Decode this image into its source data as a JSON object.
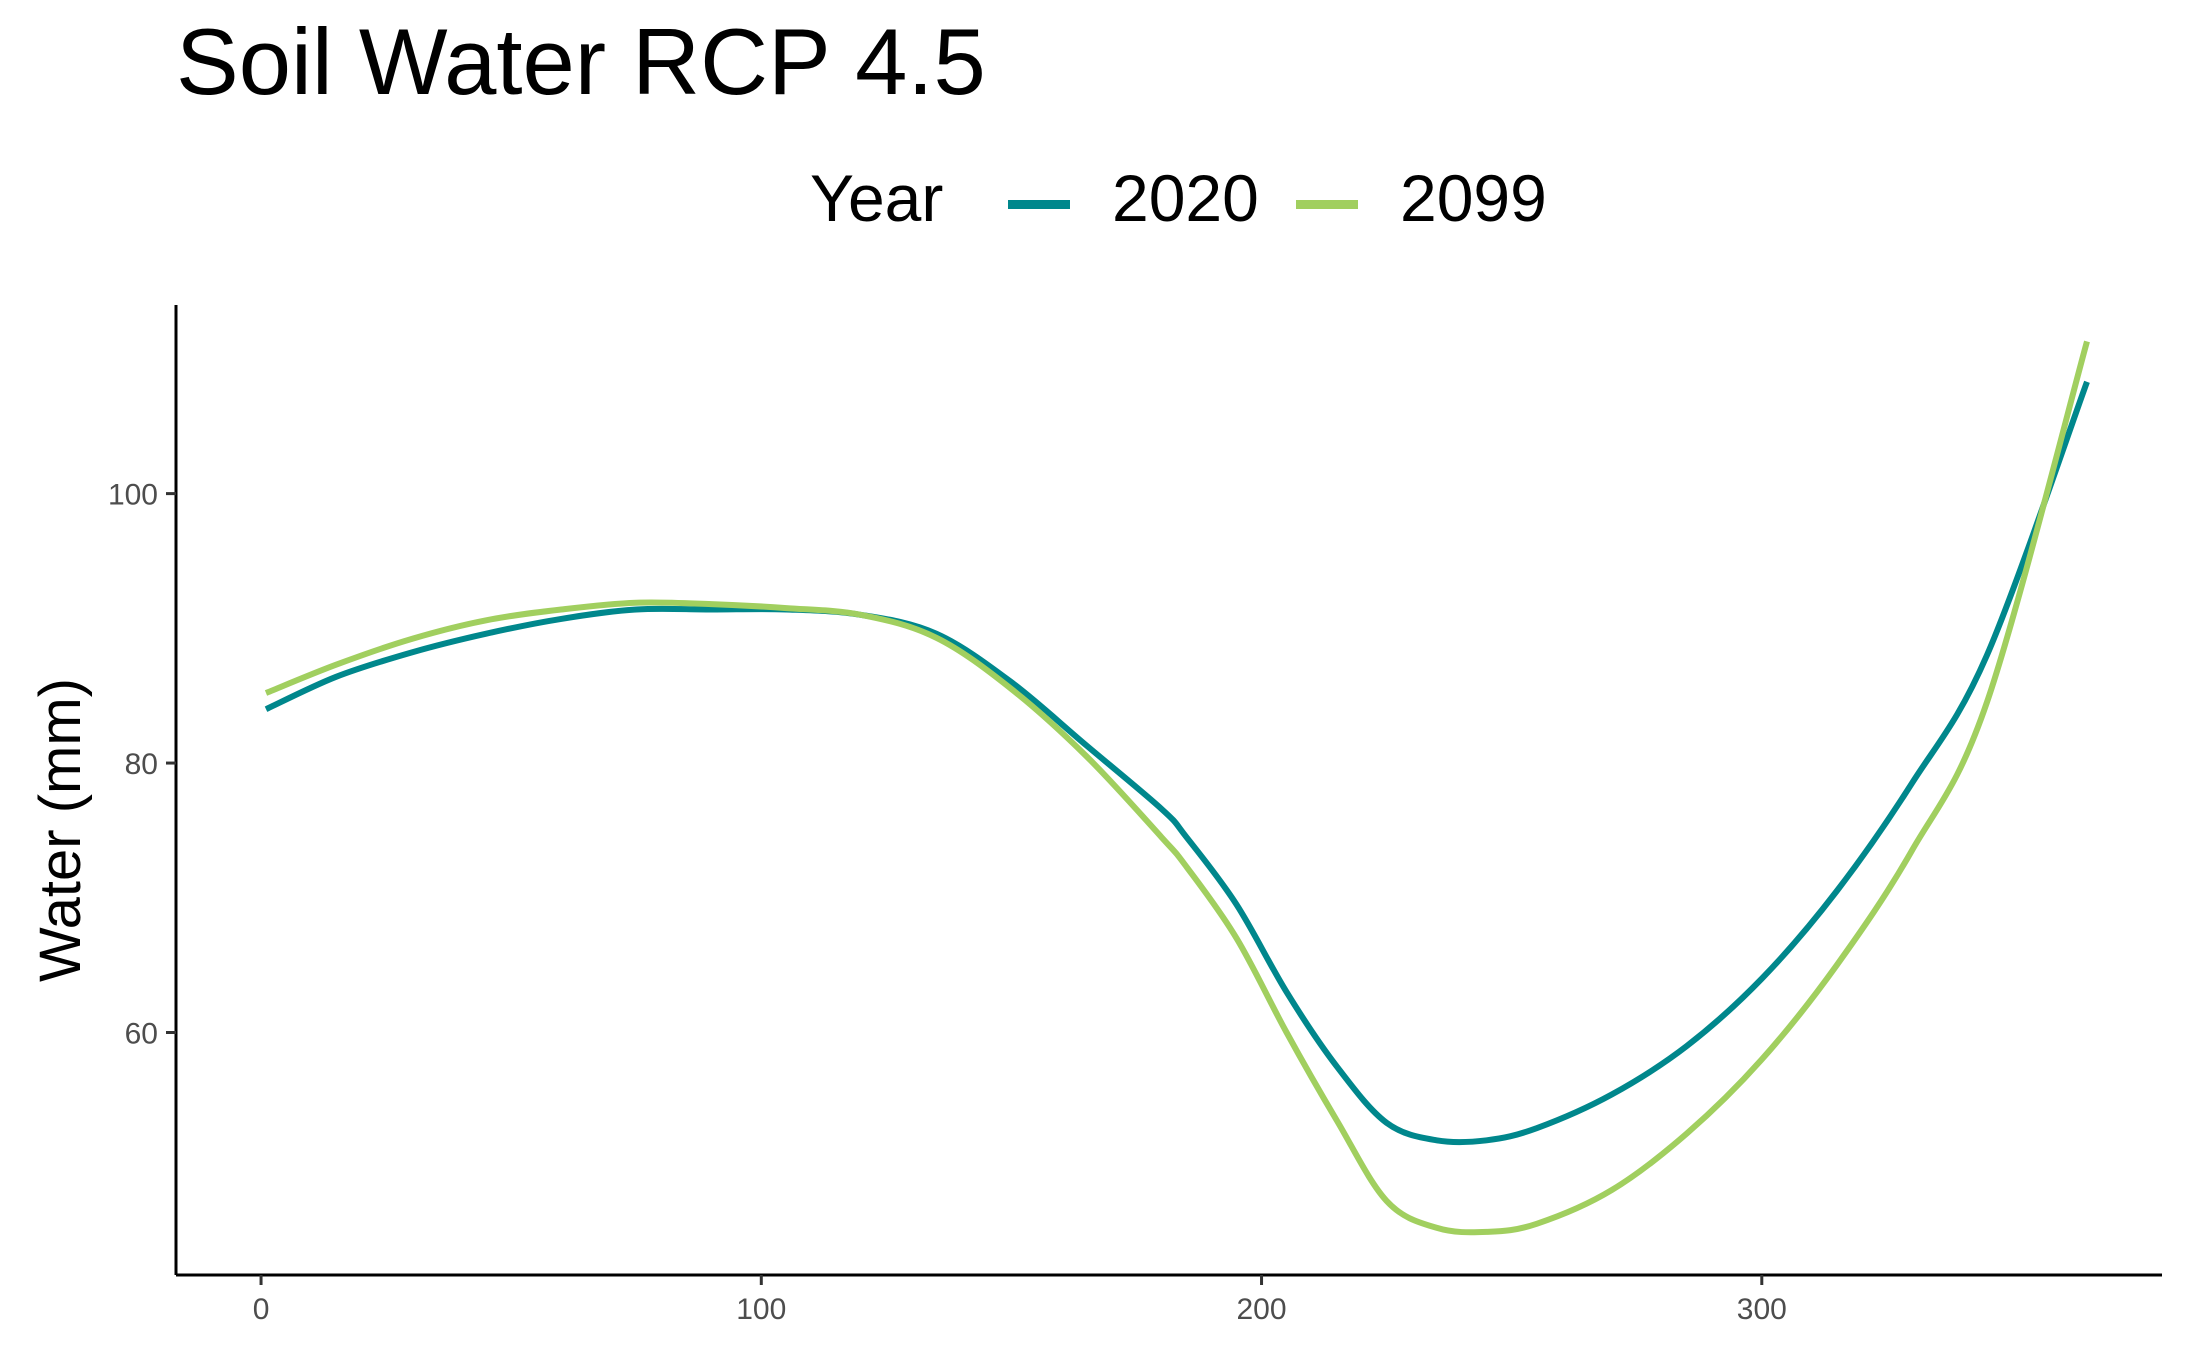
{
  "chart_data": {
    "type": "line",
    "title": "Soil Water RCP 4.5",
    "xlabel": "",
    "ylabel": "Water (mm)",
    "xlim": [
      -17,
      380
    ],
    "ylim": [
      42,
      114
    ],
    "x_ticks": [
      0,
      100,
      200,
      300
    ],
    "y_ticks": [
      60,
      80,
      100
    ],
    "grid": false,
    "legend": {
      "title": "Year",
      "position": "top"
    },
    "series": [
      {
        "name": "2020",
        "color": "#00878c",
        "x": [
          1,
          15,
          30,
          45,
          60,
          75,
          90,
          105,
          120,
          135,
          150,
          165,
          180,
          185,
          195,
          205,
          215,
          225,
          235,
          245,
          255,
          270,
          285,
          300,
          315,
          330,
          345,
          365
        ],
        "y": [
          84.0,
          86.4,
          88.2,
          89.6,
          90.7,
          91.4,
          91.4,
          91.4,
          91.0,
          89.6,
          86.0,
          81.3,
          76.6,
          74.5,
          69.5,
          63.0,
          57.5,
          53.3,
          52.0,
          52.0,
          52.9,
          55.4,
          59.0,
          64.0,
          70.5,
          78.5,
          88.0,
          108.3
        ]
      },
      {
        "name": "2099",
        "color": "#a1cf5f",
        "x": [
          1,
          15,
          30,
          45,
          60,
          75,
          90,
          105,
          120,
          135,
          150,
          165,
          180,
          185,
          195,
          205,
          215,
          225,
          235,
          245,
          255,
          270,
          285,
          300,
          315,
          330,
          345,
          365
        ],
        "y": [
          85.2,
          87.3,
          89.2,
          90.6,
          91.4,
          91.9,
          91.8,
          91.5,
          91.0,
          89.3,
          85.5,
          80.5,
          74.5,
          72.3,
          67.0,
          60.0,
          53.5,
          47.5,
          45.5,
          45.2,
          45.8,
          48.3,
          52.5,
          58.0,
          65.0,
          73.5,
          84.5,
          111.3
        ]
      }
    ]
  }
}
